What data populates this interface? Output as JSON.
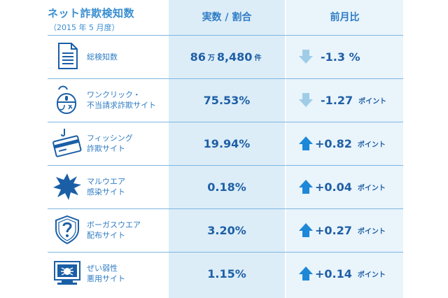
{
  "header": {
    "title": "ネット詐欺検知数",
    "subtitle": "（2015 年 5 月度）",
    "col_value": "実数 / 割合",
    "col_change": "前月比"
  },
  "rows": [
    {
      "label1": "総検知数",
      "label2": "",
      "val_a": "86",
      "unit_a": "万",
      "val_b": "8,480",
      "unit_b": "件",
      "direction": "down",
      "change": "-1.3 %",
      "change_unit": "",
      "icon": "document-icon"
    },
    {
      "label1": "ワンクリック・",
      "label2": "不当請求詐欺サイト",
      "val_a": "75.53%",
      "unit_a": "",
      "val_b": "",
      "unit_b": "",
      "direction": "down",
      "change": "-1.27",
      "change_unit": "ポイント",
      "icon": "mouse-icon"
    },
    {
      "label1": "フィッシング",
      "label2": "詐欺サイト",
      "val_a": "19.94%",
      "unit_a": "",
      "val_b": "",
      "unit_b": "",
      "direction": "up",
      "change": "+0.82",
      "change_unit": "ポイント",
      "icon": "credit-card-hook-icon"
    },
    {
      "label1": "マルウエア",
      "label2": "感染サイト",
      "val_a": "0.18%",
      "unit_a": "",
      "val_b": "",
      "unit_b": "",
      "direction": "up",
      "change": "+0.04",
      "change_unit": "ポイント",
      "icon": "malware-burst-icon"
    },
    {
      "label1": "ボーガスウエア",
      "label2": "配布サイト",
      "val_a": "3.20%",
      "unit_a": "",
      "val_b": "",
      "unit_b": "",
      "direction": "up",
      "change": "+0.27",
      "change_unit": "ポイント",
      "icon": "shield-question-icon"
    },
    {
      "label1": "ぜい弱性",
      "label2": "悪用サイト",
      "val_a": "1.15%",
      "unit_a": "",
      "val_b": "",
      "unit_b": "",
      "direction": "up",
      "change": "+0.14",
      "change_unit": "ポイント",
      "icon": "monitor-bug-icon"
    }
  ],
  "colors": {
    "up": "#1e88d8",
    "down": "#9fcde8",
    "icon": "#1a5fa6"
  }
}
